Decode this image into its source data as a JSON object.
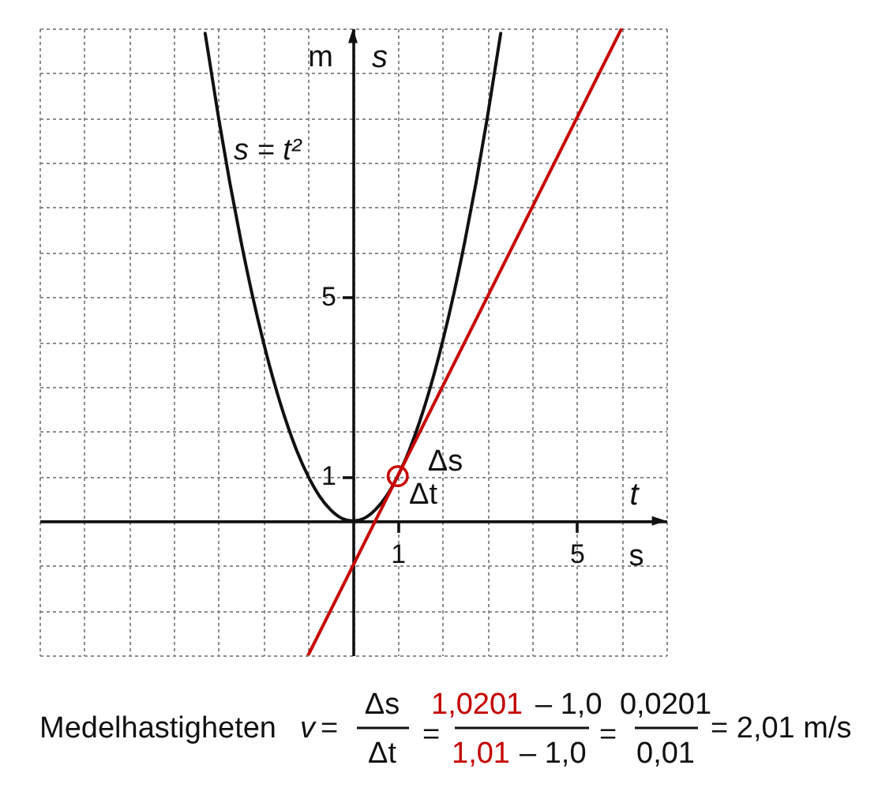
{
  "chart_data": {
    "type": "line",
    "xlabel": "t",
    "ylabel": "s",
    "xlim": [
      -7,
      7
    ],
    "ylim": [
      -3,
      11
    ],
    "xticks": [
      {
        "value": -7,
        "label": null
      },
      {
        "value": -6,
        "label": null
      },
      {
        "value": -5,
        "label": null
      },
      {
        "value": -4,
        "label": null
      },
      {
        "value": -3,
        "label": null
      },
      {
        "value": -2,
        "label": null
      },
      {
        "value": -1,
        "label": null
      },
      {
        "value": 0,
        "label": null
      },
      1,
      {
        "value": 2,
        "label": null
      },
      {
        "value": 3,
        "label": null
      },
      {
        "value": 4,
        "label": null
      },
      5,
      {
        "value": 6,
        "label": null
      },
      {
        "value": 7,
        "label": null
      }
    ],
    "yticks": [
      {
        "value": -3,
        "label": null
      },
      {
        "value": -2,
        "label": null
      },
      {
        "value": -1,
        "label": null
      },
      {
        "value": 0,
        "label": null
      },
      1,
      {
        "value": 2,
        "label": null
      },
      {
        "value": 3,
        "label": null
      },
      {
        "value": 4,
        "label": null
      },
      5,
      {
        "value": 6,
        "label": null
      },
      {
        "value": 7,
        "label": null
      },
      {
        "value": 8,
        "label": null
      },
      {
        "value": 9,
        "label": null
      },
      {
        "value": 10,
        "label": null
      },
      {
        "value": 11,
        "label": null
      }
    ],
    "grid": true,
    "series": [
      {
        "name": "s = t²",
        "color": "#111111",
        "x": [
          -3.3,
          -3,
          -2.75,
          -2.5,
          -2.25,
          -2,
          -1.75,
          -1.5,
          -1.25,
          -1,
          -0.75,
          -0.5,
          -0.25,
          0,
          0.25,
          0.5,
          0.75,
          1,
          1.25,
          1.5,
          1.75,
          2,
          2.25,
          2.5,
          2.75,
          3,
          3.3
        ],
        "values": [
          10.89,
          9,
          7.56,
          6.25,
          5.06,
          4,
          3.06,
          2.25,
          1.56,
          1,
          0.56,
          0.25,
          0.06,
          0,
          0.06,
          0.25,
          0.56,
          1,
          1.56,
          2.25,
          3.06,
          4,
          5.06,
          6.25,
          7.56,
          9,
          10.89
        ]
      },
      {
        "type": "line",
        "color": "#c80000",
        "x": [
          -1,
          6
        ],
        "values": [
          -3,
          11
        ]
      },
      {
        "type": "scatter",
        "color": "#c80000",
        "marker": "circle",
        "x": [
          1
        ],
        "values": [
          1
        ]
      }
    ],
    "annotations": [
      "m",
      "s",
      "Δs",
      "Δt",
      "Medelhastigheten",
      "v",
      "=",
      "Δs",
      "Δt",
      "=",
      "1,0201",
      "– 1,0",
      "1,01",
      "– 1,0",
      "=",
      "0,0201",
      "0,01",
      "= 2,01 m/s"
    ]
  }
}
